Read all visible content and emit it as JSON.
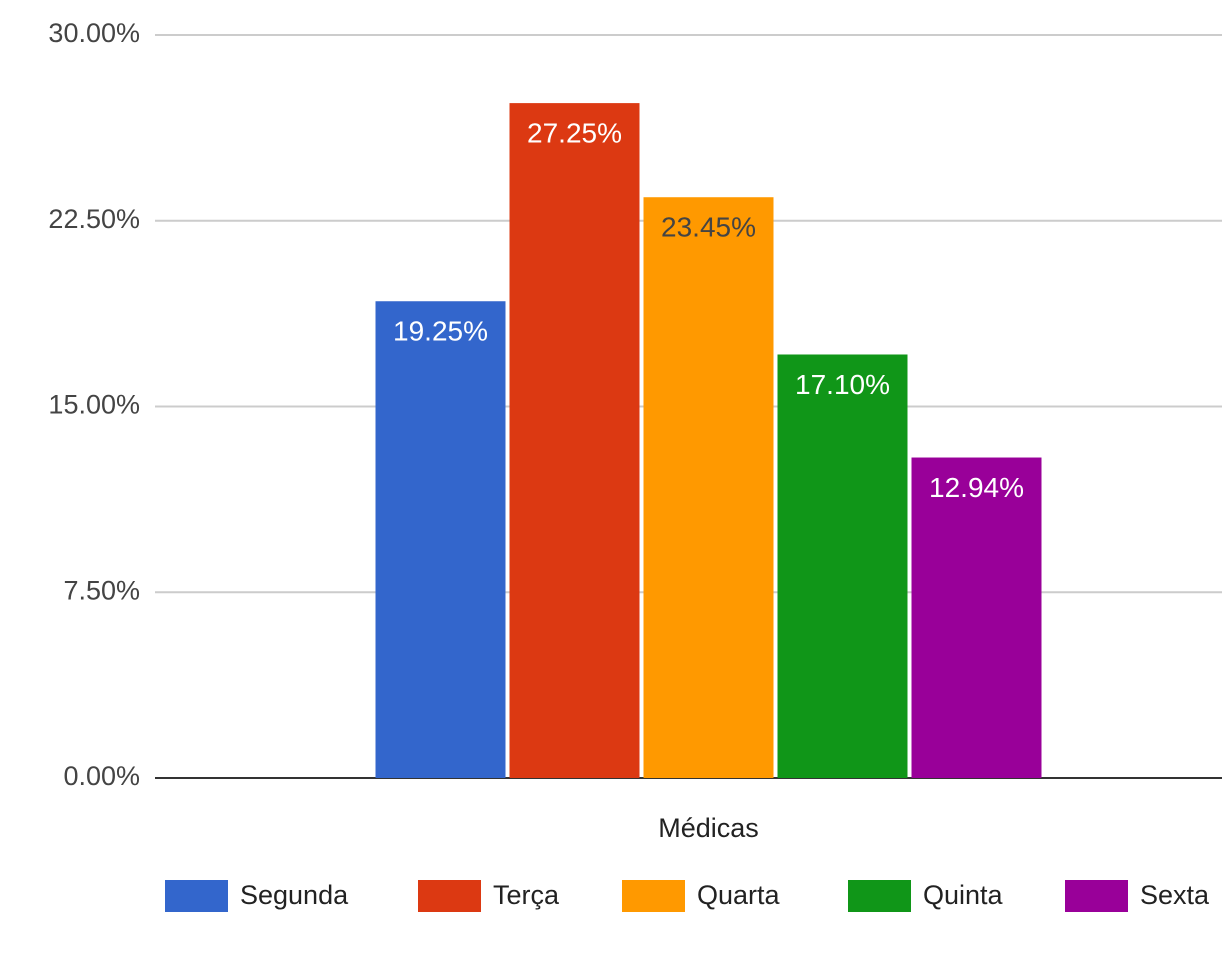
{
  "chart_data": {
    "type": "bar",
    "categories": [
      "Médicas"
    ],
    "series": [
      {
        "name": "Segunda",
        "color": "#3366cc",
        "values": [
          19.25
        ],
        "value_labels": [
          "19.25%"
        ]
      },
      {
        "name": "Terça",
        "color": "#dc3912",
        "values": [
          27.25
        ],
        "value_labels": [
          "27.25%"
        ]
      },
      {
        "name": "Quarta",
        "color": "#ff9900",
        "values": [
          23.45
        ],
        "value_labels": [
          "23.45%"
        ]
      },
      {
        "name": "Quinta",
        "color": "#109618",
        "values": [
          17.1
        ],
        "value_labels": [
          "17.10%"
        ]
      },
      {
        "name": "Sexta",
        "color": "#990099",
        "values": [
          12.94
        ],
        "value_labels": [
          "12.94%"
        ]
      }
    ],
    "ylim": [
      0,
      30
    ],
    "yticks": [
      {
        "value": 0,
        "label": "0.00%"
      },
      {
        "value": 7.5,
        "label": "7.50%"
      },
      {
        "value": 15,
        "label": "15.00%"
      },
      {
        "value": 22.5,
        "label": "22.50%"
      },
      {
        "value": 30,
        "label": "30.00%"
      }
    ],
    "grid": true,
    "legend": "bottom"
  }
}
